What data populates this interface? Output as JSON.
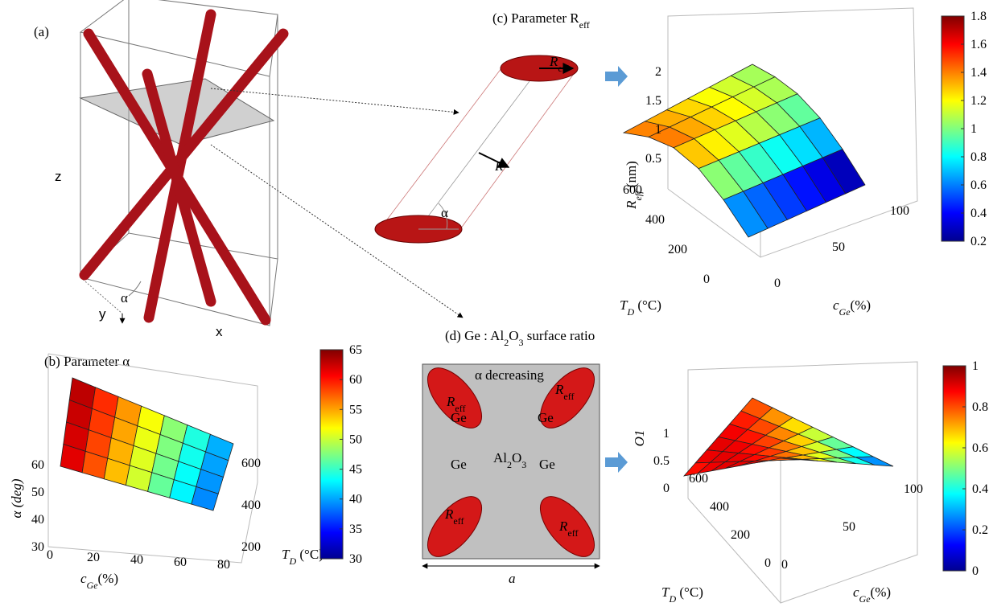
{
  "panel_a": {
    "label": "(a)",
    "axis_labels": [
      "z",
      "y",
      "x"
    ],
    "angle": "α"
  },
  "panel_b": {
    "title": "(b) Parameter α",
    "z_label": "α (deg)",
    "z_ticks": [
      "30",
      "40",
      "50",
      "60"
    ],
    "cge_label": {
      "symbol": "c",
      "subscript": "Ge",
      "unit": "(%)"
    },
    "cge_ticks": [
      "0",
      "20",
      "40",
      "60",
      "80"
    ],
    "td_label": {
      "symbol": "T",
      "subscript": "D",
      "unit": " (°C)"
    },
    "td_ticks": [
      "200",
      "400",
      "600"
    ],
    "colorbar_ticks": [
      "30",
      "35",
      "40",
      "45",
      "50",
      "55",
      "60",
      "65"
    ]
  },
  "panel_c": {
    "title": {
      "text": "(c) Parameter R",
      "subscript": "eff"
    },
    "schematic": {
      "r_eff": {
        "symbol": "R",
        "subscript": "eff"
      },
      "r": "R",
      "angle": "α"
    },
    "z_label": {
      "symbol": "R",
      "subscript": "eff",
      "unit": " (nm)"
    },
    "z_ticks": [
      "0.5",
      "1",
      "1.5",
      "2"
    ],
    "td_label": {
      "symbol": "T",
      "subscript": "D",
      "unit": " (°C)"
    },
    "td_ticks": [
      "0",
      "200",
      "400",
      "600"
    ],
    "cge_label": {
      "symbol": "c",
      "subscript": "Ge",
      "unit": "(%)"
    },
    "cge_ticks": [
      "0",
      "50",
      "100"
    ],
    "colorbar_ticks": [
      "0.2",
      "0.4",
      "0.6",
      "0.8",
      "1",
      "1.2",
      "1.4",
      "1.6",
      "1.8"
    ]
  },
  "panel_d": {
    "title": {
      "text": "(d) Ge : Al",
      "sub1": "2",
      "mid": "O",
      "sub2": "3",
      "tail": " surface ratio"
    },
    "schematic": {
      "caption": "α decreasing",
      "ge_labels": [
        "Ge",
        "Ge",
        "Ge",
        "Ge"
      ],
      "r_eff": {
        "symbol": "R",
        "subscript": "eff"
      },
      "matrix": {
        "text": "Al",
        "sub1": "2",
        "mid": "O",
        "sub2": "3"
      },
      "width": "a"
    },
    "z_label": "O1",
    "z_ticks": [
      "0",
      "0.5",
      "1"
    ],
    "td_label": {
      "symbol": "T",
      "subscript": "D",
      "unit": " (°C)"
    },
    "td_ticks": [
      "0",
      "200",
      "400",
      "600"
    ],
    "cge_label": {
      "symbol": "c",
      "subscript": "Ge",
      "unit": "(%)"
    },
    "cge_ticks": [
      "0",
      "50",
      "100"
    ],
    "colorbar_ticks": [
      "0",
      "0.2",
      "0.4",
      "0.6",
      "0.8",
      "1"
    ]
  }
}
